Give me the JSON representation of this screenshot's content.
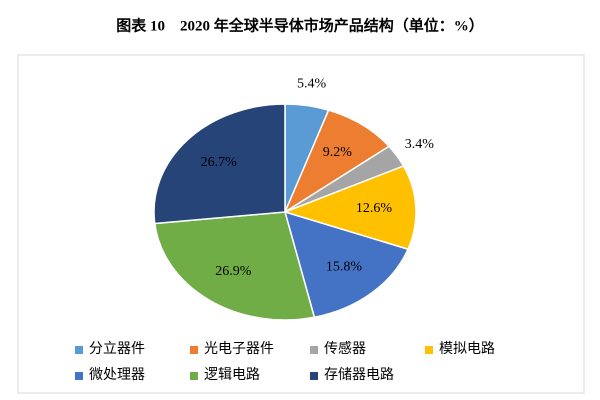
{
  "chart_data": {
    "type": "pie",
    "title": "图表 10　2020 年全球半导体市场产品结构（单位：%）",
    "categories": [
      "分立器件",
      "光电子器件",
      "传感器",
      "模拟电路",
      "微处理器",
      "逻辑电路",
      "存储器电路"
    ],
    "values": [
      5.4,
      9.2,
      3.4,
      12.6,
      15.8,
      26.9,
      26.7
    ],
    "value_labels": [
      "5.4%",
      "9.2%",
      "3.4%",
      "12.6%",
      "15.8%",
      "26.9%",
      "26.7%"
    ],
    "colors": [
      "#5b9bd5",
      "#ed7d31",
      "#a5a5a5",
      "#ffc000",
      "#4472c4",
      "#70ad47",
      "#264478"
    ]
  }
}
